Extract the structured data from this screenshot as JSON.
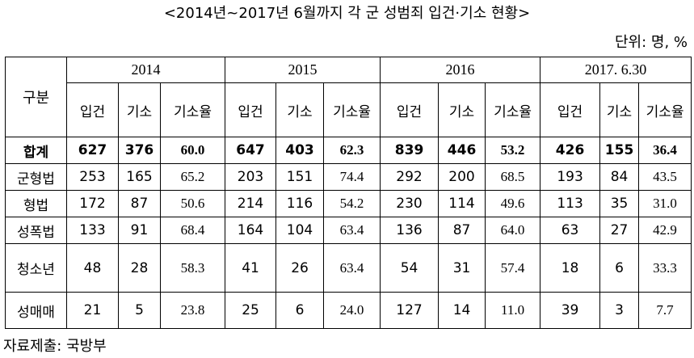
{
  "header": {
    "title": "<2014년~2017년 6월까지 각 군 성범죄 입건·기소 현황>",
    "unit": "단위: 명, %"
  },
  "table": {
    "corner": "구분",
    "years": [
      "2014",
      "2015",
      "2016",
      "2017. 6.30"
    ],
    "subheaders": [
      "입건",
      "기소",
      "기소율"
    ],
    "rows": [
      [
        "합계",
        627,
        376,
        "60.0",
        647,
        403,
        "62.3",
        839,
        446,
        "53.2",
        426,
        155,
        "36.4"
      ],
      [
        "군형법",
        253,
        165,
        "65.2",
        203,
        151,
        "74.4",
        292,
        200,
        "68.5",
        193,
        84,
        "43.5"
      ],
      [
        "형법",
        172,
        87,
        "50.6",
        214,
        116,
        "54.2",
        230,
        114,
        "49.6",
        113,
        35,
        "31.0"
      ],
      [
        "성폭법",
        133,
        91,
        "68.4",
        164,
        104,
        "63.4",
        136,
        87,
        "64.0",
        63,
        27,
        "42.9"
      ],
      [
        "청소년",
        48,
        28,
        "58.3",
        41,
        26,
        "63.4",
        54,
        31,
        "57.4",
        18,
        6,
        "33.3"
      ],
      [
        "성매매",
        21,
        5,
        "23.8",
        25,
        6,
        "24.0",
        127,
        14,
        "11.0",
        39,
        3,
        "7.7"
      ]
    ]
  },
  "footer": {
    "source": "자료제출: 국방부"
  }
}
